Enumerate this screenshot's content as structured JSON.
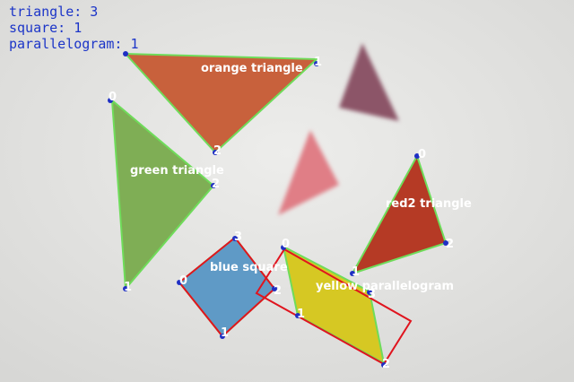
{
  "counts": {
    "triangle": "triangle: 3",
    "square": "square: 1",
    "parallelogram": "parallelogram: 1"
  },
  "shapes": {
    "orange": {
      "label": "orange triangle",
      "color": "#c8613c",
      "v": [
        "0",
        "1",
        "2"
      ]
    },
    "green": {
      "label": "green triangle",
      "color": "#7fae55",
      "v": [
        "0",
        "1",
        "2"
      ]
    },
    "red2": {
      "label": "red2 triangle",
      "color": "#b53a25",
      "v": [
        "0",
        "1",
        "2"
      ]
    },
    "blue": {
      "label": "blue square",
      "color": "#5f9ac6",
      "v": [
        "0",
        "1",
        "2",
        "3"
      ]
    },
    "yellow": {
      "label": "yellow parallelogram",
      "color": "#d6c823",
      "v": [
        "0",
        "1",
        "2",
        "3"
      ]
    }
  },
  "colors": {
    "contour": "#6fdc5a",
    "box": "#e0141e",
    "vertex_dot": "#1f2fc4",
    "text": "#ffffff",
    "counts_text": "#1c35c8"
  }
}
